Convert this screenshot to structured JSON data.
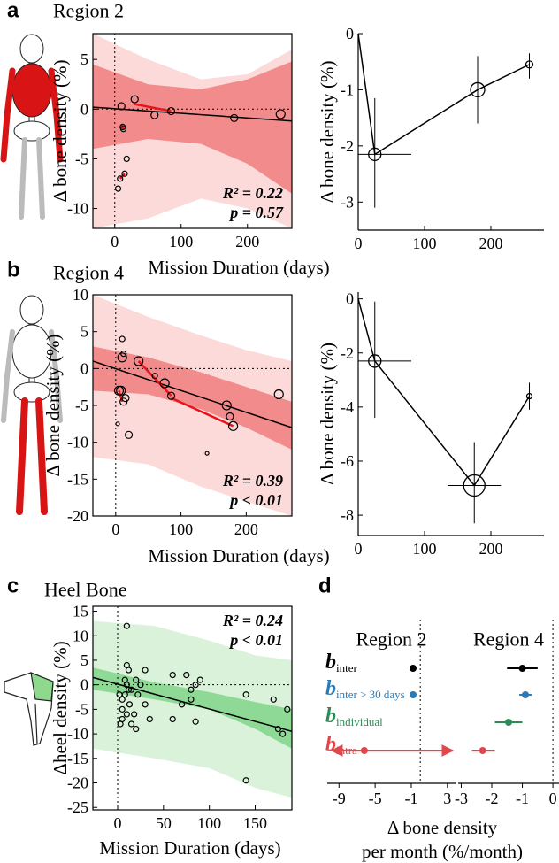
{
  "panels": [
    {
      "label": "a",
      "title": "Region 2"
    },
    {
      "label": "b",
      "title": "Region 4"
    },
    {
      "label": "c",
      "title": "Heel Bone"
    },
    {
      "label": "d"
    }
  ],
  "chart_data": [
    {
      "type": "scatter",
      "ylabel": "Δ bone density (%)",
      "xlabel": "Mission Duration (days)",
      "xlim": [
        -33,
        267
      ],
      "ylim": [
        -12,
        7.6
      ],
      "xticks": [
        0,
        100,
        200
      ],
      "yticks": [
        -10,
        -5,
        0,
        5
      ],
      "reference_lines": {
        "x": 0,
        "y": 0
      },
      "x": [
        5,
        8,
        10,
        12,
        13,
        15,
        18,
        30,
        60,
        85,
        180,
        250
      ],
      "y": [
        -8,
        -7,
        0.3,
        -1.8,
        -2,
        -6.5,
        -5,
        1,
        -0.6,
        -0.2,
        -0.9,
        -0.5
      ],
      "sizes": [
        3,
        3,
        4,
        3,
        3,
        3,
        3,
        4,
        4,
        4,
        4,
        5
      ],
      "point_color": "#000000",
      "trajectories": [
        {
          "x": [
            8,
            15
          ],
          "y": [
            -7,
            -6.5
          ]
        },
        {
          "x": [
            10,
            13
          ],
          "y": [
            -1.5,
            -2
          ]
        },
        {
          "x": [
            30,
            85
          ],
          "y": [
            0.5,
            -0.2
          ]
        }
      ],
      "trajectory_color": "#e8141a",
      "fit": {
        "x": [
          -33,
          267
        ],
        "y": [
          0.2,
          -1.2
        ],
        "color": "#000000"
      },
      "prediction_band": {
        "x": [
          -33,
          50,
          130,
          200,
          267
        ],
        "lower": [
          -12,
          -11,
          -9,
          -10,
          -12
        ],
        "upper": [
          7.6,
          5,
          3,
          3.5,
          6
        ],
        "color": "#fcdada"
      },
      "confidence_band": {
        "x": [
          -33,
          50,
          130,
          200,
          267
        ],
        "lower": [
          -4,
          -3,
          -3.5,
          -5.5,
          -8.5
        ],
        "upper": [
          4.5,
          2.5,
          2,
          3,
          4.8
        ],
        "color": "#f28b8b"
      },
      "annotations": [
        "R² = 0.22",
        "p = 0.57"
      ],
      "annotation_corner": "bottom-right"
    },
    {
      "type": "line",
      "ylabel": "Δ bone density (%)",
      "xlim": [
        0,
        280
      ],
      "ylim": [
        -3.5,
        0
      ],
      "xticks": [
        0,
        100,
        200
      ],
      "yticks": [
        -3,
        -2,
        -1,
        0
      ],
      "x": [
        0,
        25,
        180,
        258
      ],
      "y": [
        0,
        -2.15,
        -1.0,
        -0.55
      ],
      "x_lower": [
        null,
        0,
        null,
        null
      ],
      "x_upper": [
        null,
        80,
        null,
        null
      ],
      "y_lower": [
        null,
        -3.1,
        -1.6,
        -0.8
      ],
      "y_upper": [
        null,
        -1.15,
        -0.4,
        -0.35
      ],
      "sizes": [
        null,
        7,
        8,
        4
      ],
      "color": "#000000"
    },
    {
      "type": "scatter",
      "ylabel": "Δ bone density (%)",
      "xlabel": "Mission Duration (days)",
      "xlim": [
        -35,
        270
      ],
      "ylim": [
        -20,
        10
      ],
      "xticks": [
        0,
        100,
        200
      ],
      "yticks": [
        -20,
        -15,
        -10,
        -5,
        0,
        5,
        10
      ],
      "reference_lines": {
        "x": 0,
        "y": 0
      },
      "x": [
        3,
        5,
        8,
        10,
        10,
        12,
        12,
        15,
        20,
        35,
        60,
        75,
        85,
        140,
        170,
        175,
        180,
        250
      ],
      "y": [
        -7.5,
        -3,
        -3,
        1.5,
        4,
        2,
        -4.5,
        -4,
        -9,
        1,
        -1,
        -2,
        -3.7,
        -11.5,
        -5,
        -6.5,
        -7.8,
        -3.5
      ],
      "sizes": [
        2,
        5,
        5,
        5,
        3,
        3,
        4,
        4,
        4,
        5,
        3,
        5,
        4,
        2,
        5,
        4,
        5,
        5
      ],
      "point_color": "#000000",
      "trajectories": [
        {
          "x": [
            5,
            10
          ],
          "y": [
            -3,
            -4.5
          ]
        },
        {
          "x": [
            35,
            85
          ],
          "y": [
            1,
            -3.7
          ]
        },
        {
          "x": [
            85,
            180
          ],
          "y": [
            -4,
            -7.8
          ]
        }
      ],
      "trajectory_color": "#e8141a",
      "fit": {
        "x": [
          -35,
          270
        ],
        "y": [
          1,
          -8
        ],
        "color": "#000000"
      },
      "prediction_band": {
        "x": [
          -35,
          50,
          130,
          200,
          270
        ],
        "lower": [
          -12,
          -13,
          -16,
          -18,
          -20
        ],
        "upper": [
          10,
          7,
          4.5,
          2.5,
          1
        ],
        "color": "#fcdada"
      },
      "confidence_band": {
        "x": [
          -35,
          50,
          130,
          200,
          270
        ],
        "lower": [
          -3,
          -3.5,
          -5.5,
          -8,
          -11
        ],
        "upper": [
          3,
          1.5,
          -0.5,
          -2.5,
          -4.5
        ],
        "color": "#f28b8b"
      },
      "annotations": [
        "R² = 0.39",
        "p < 0.01"
      ],
      "annotation_corner": "bottom-right"
    },
    {
      "type": "line",
      "ylabel": "Δ bone density (%)",
      "xlim": [
        0,
        280
      ],
      "ylim": [
        -8.75,
        0.25
      ],
      "xticks": [
        0,
        100,
        200
      ],
      "yticks": [
        -8,
        -6,
        -4,
        -2,
        0
      ],
      "x": [
        0,
        25,
        175,
        258
      ],
      "y": [
        0,
        -2.3,
        -6.9,
        -3.6
      ],
      "x_lower": [
        null,
        0,
        135,
        null
      ],
      "x_upper": [
        null,
        80,
        215,
        null
      ],
      "y_lower": [
        null,
        -4.4,
        -8.3,
        -4.1
      ],
      "y_upper": [
        null,
        -0.1,
        -5.3,
        -3.1
      ],
      "sizes": [
        null,
        7,
        12,
        3
      ],
      "color": "#000000"
    },
    {
      "type": "scatter",
      "ylabel": "Δheel density (%)",
      "xlabel": "Mission Duration (days)",
      "xlim": [
        -27,
        190
      ],
      "ylim": [
        -25.5,
        16
      ],
      "xticks": [
        0,
        50,
        100,
        150
      ],
      "yticks": [
        -25,
        -20,
        -15,
        -10,
        -5,
        0,
        5,
        10,
        15
      ],
      "reference_lines": {
        "x": 0,
        "y": 0
      },
      "x": [
        5,
        5,
        5,
        8,
        8,
        10,
        10,
        10,
        12,
        12,
        13,
        15,
        18,
        20,
        15,
        20,
        22,
        25,
        30,
        30,
        60,
        60,
        70,
        75,
        80,
        80,
        85,
        85,
        90,
        140,
        140,
        170,
        175,
        180,
        185,
        3,
        2,
        10,
        35
      ],
      "y": [
        -3,
        -5,
        -7,
        -2,
        1,
        12,
        4,
        0,
        3,
        -1,
        -4,
        -8,
        -6,
        -9,
        -1,
        1,
        -2,
        0,
        3,
        -4,
        2,
        -7,
        -4,
        2,
        -1,
        -3,
        0,
        -7.5,
        1,
        -2,
        -19.5,
        -3,
        -9,
        -10,
        -5,
        -8,
        -2,
        -6,
        -7
      ],
      "marker_size": 3,
      "point_color": "#000000",
      "fit": {
        "x": [
          -27,
          190
        ],
        "y": [
          1.5,
          -9.5
        ],
        "color": "#000000"
      },
      "prediction_band": {
        "x": [
          -27,
          40,
          100,
          150,
          190
        ],
        "lower": [
          -13,
          -15,
          -17,
          -21,
          -23
        ],
        "upper": [
          13,
          12,
          9,
          6,
          5
        ],
        "color": "#d9f2d9"
      },
      "confidence_band": {
        "x": [
          -27,
          40,
          100,
          150,
          190
        ],
        "lower": [
          -1,
          -3,
          -5,
          -9,
          -13
        ],
        "upper": [
          3.5,
          0.5,
          -1.5,
          -3.5,
          -5
        ],
        "color": "#8fd997"
      },
      "annotations": [
        "R² = 0.24",
        "p < 0.01"
      ],
      "annotation_corner": "top-right"
    },
    {
      "type": "forest",
      "xlabel": [
        "Δ bone density",
        "per month (%/month)"
      ],
      "reference_x": 0,
      "rows": [
        {
          "symbol": "b",
          "subscript": "inter",
          "color": "#000000"
        },
        {
          "symbol": "b",
          "subscript": "inter > 30 days",
          "color": "#2a7ab8"
        },
        {
          "symbol": "b",
          "subscript": "individual",
          "color": "#2e8b57"
        },
        {
          "symbol": "b",
          "subscript": "intra",
          "color": "#e0474c"
        }
      ],
      "subpanels": [
        {
          "title": "Region 2",
          "xlim": [
            -10.3,
            3.9
          ],
          "xticks": [
            -9,
            -5,
            -1,
            3
          ],
          "values": [
            -0.8,
            -0.8,
            null,
            -6.2
          ],
          "lower": [
            -0.95,
            -0.85,
            null,
            -9.8
          ],
          "upper": [
            -0.65,
            -0.75,
            null,
            3.6
          ],
          "arrows": [
            false,
            false,
            false,
            true
          ]
        },
        {
          "title": "Region 4",
          "xlim": [
            -3.1,
            0.2
          ],
          "xticks": [
            -3,
            -2,
            -1,
            0
          ],
          "values": [
            -1.0,
            -0.9,
            -1.45,
            -2.3
          ],
          "lower": [
            -1.5,
            -1.1,
            -1.9,
            -2.65
          ],
          "upper": [
            -0.5,
            -0.7,
            -1.0,
            -1.9
          ],
          "arrows": [
            false,
            false,
            false,
            false
          ]
        }
      ]
    }
  ]
}
